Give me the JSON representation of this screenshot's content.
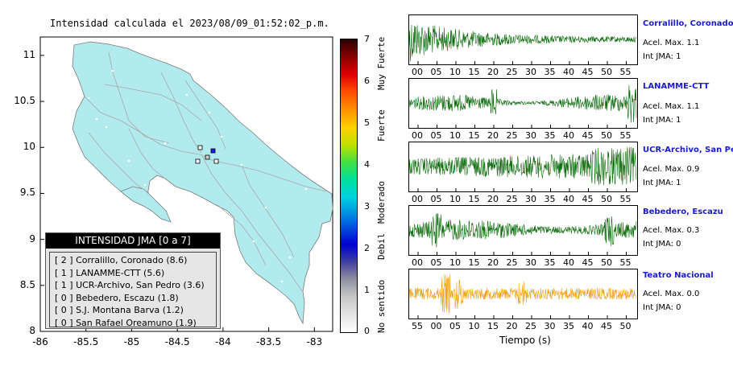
{
  "map": {
    "title": "Intensidad calculada el 2023/08/09_01:52:02_p.m.",
    "xticks": [
      "-86",
      "-85.5",
      "-85",
      "-84.5",
      "-84",
      "-83.5",
      "-83"
    ],
    "yticks": [
      "11",
      "10.5",
      "10",
      "9.5",
      "9",
      "8.5",
      "8"
    ],
    "xlim": [
      -86,
      -82.8
    ],
    "ylim": [
      8,
      11.2
    ],
    "land_color": "#b2ebee",
    "legend": {
      "title": "INTENSIDAD JMA [0 a 7]",
      "rows": [
        "[ 2 ]  Corralillo, Coronado (8.6)",
        "[ 1 ]  LANAMME-CTT (5.6)",
        "[ 1 ]  UCR-Archivo, San Pedro (3.6)",
        "[ 0 ]  Bebedero, Escazu (1.8)",
        "[ 0 ]  S.J. Montana Barva (1.2)",
        "[ 0 ]  San Rafael Oreamuno (1.9)"
      ]
    }
  },
  "colorbar": {
    "ticks": [
      "7",
      "6",
      "5",
      "4",
      "3",
      "2",
      "1",
      "0"
    ],
    "categories": [
      "Muy Fuerte",
      "Fuerte",
      "Moderado",
      "Debil",
      "No sentido"
    ]
  },
  "stations": [
    {
      "name": "Corralillo, Coronado",
      "acel": "Acel. Max. 1.1",
      "jma": "Int JMA: 1",
      "color": "#0b6b0b",
      "ticks": [
        "00",
        "05",
        "10",
        "15",
        "20",
        "25",
        "30",
        "35",
        "40",
        "45",
        "50",
        "55"
      ]
    },
    {
      "name": "LANAMME-CTT",
      "acel": "Acel. Max. 1.1",
      "jma": "Int JMA: 1",
      "color": "#0b6b0b",
      "ticks": [
        "00",
        "05",
        "10",
        "15",
        "20",
        "25",
        "30",
        "35",
        "40",
        "45",
        "50",
        "55"
      ]
    },
    {
      "name": "UCR-Archivo, San Pedro",
      "acel": "Acel. Max. 0.9",
      "jma": "Int JMA: 1",
      "color": "#0b6b0b",
      "ticks": [
        "00",
        "05",
        "10",
        "15",
        "20",
        "25",
        "30",
        "35",
        "40",
        "45",
        "50",
        "55"
      ]
    },
    {
      "name": "Bebedero, Escazu",
      "acel": "Acel. Max. 0.3",
      "jma": "Int JMA: 0",
      "color": "#0b6b0b",
      "ticks": [
        "00",
        "05",
        "10",
        "15",
        "20",
        "25",
        "30",
        "35",
        "40",
        "45",
        "50",
        "55"
      ]
    },
    {
      "name": "Teatro Nacional",
      "acel": "Acel. Max. 0.0",
      "jma": "Int JMA: 0",
      "color": "#f0a010",
      "ticks": [
        "55",
        "00",
        "05",
        "10",
        "15",
        "20",
        "25",
        "30",
        "35",
        "40",
        "45",
        "50"
      ]
    }
  ],
  "waveforms_xlabel": "Tiempo (s)"
}
